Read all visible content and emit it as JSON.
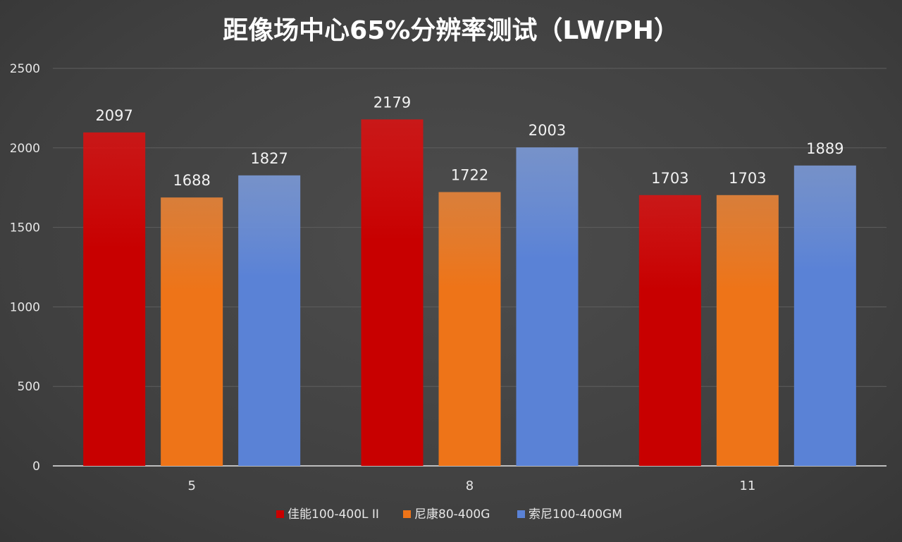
{
  "chart_data": {
    "type": "bar",
    "title": "距像场中心65%分辨率测试（LW/PH）",
    "xlabel": "",
    "ylabel": "",
    "ylim": [
      0,
      2500
    ],
    "yticks": [
      0,
      500,
      1000,
      1500,
      2000,
      2500
    ],
    "grid": true,
    "legend_position": "bottom",
    "categories": [
      "5",
      "8",
      "11"
    ],
    "series": [
      {
        "name": "佳能100-400L II",
        "color": "#e01010",
        "color_dark": "#c80000",
        "values": [
          2097,
          2179,
          1703
        ]
      },
      {
        "name": "尼康80-400G",
        "color": "#f28838",
        "color_dark": "#ee7418",
        "values": [
          1688,
          1722,
          1703
        ]
      },
      {
        "name": "索尼100-400GM",
        "color": "#7f9fe0",
        "color_dark": "#5a82d6",
        "values": [
          1827,
          2003,
          1889
        ]
      }
    ]
  }
}
